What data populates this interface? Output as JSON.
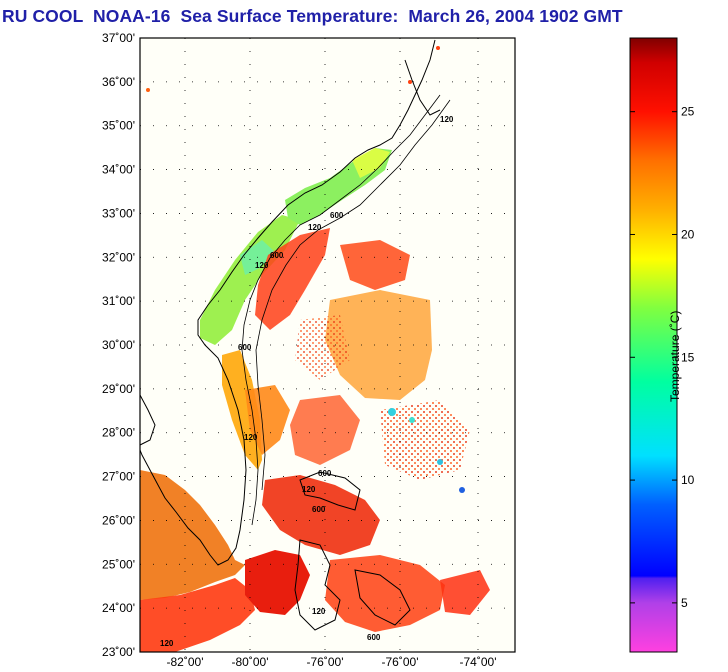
{
  "title": "RU COOL  NOAA-16  Sea Surface Temperature:  March 26, 2004 1902 GMT",
  "map": {
    "lat_labels": [
      "37˚00'",
      "36˚00'",
      "35˚00'",
      "34˚00'",
      "33˚00'",
      "32˚00'",
      "31˚00'",
      "30˚00'",
      "29˚00'",
      "28˚00'",
      "27˚00'",
      "26˚00'",
      "25˚00'",
      "24˚00'",
      "23˚00'"
    ],
    "lon_labels": [
      "-82˚00'",
      "-80˚00'",
      "-76˚00'",
      "-76˚00'",
      "-74˚00'"
    ],
    "isobath_labels": [
      "120",
      "600",
      "120",
      "600",
      "120",
      "600",
      "120",
      "600",
      "120",
      "600",
      "120",
      "600",
      "120"
    ],
    "colors": {
      "land": "#fffff8",
      "frame": "#000000",
      "grid": "#000000"
    }
  },
  "colorbar": {
    "title": "Temperature (˚C)",
    "ticks": [
      "25",
      "20",
      "15",
      "10",
      "5"
    ],
    "range": [
      3,
      28
    ],
    "stops": [
      {
        "t": 3,
        "color": "#ff40e0"
      },
      {
        "t": 5,
        "color": "#b040e8"
      },
      {
        "t": 6,
        "color": "#5020f0"
      },
      {
        "t": 6.1,
        "color": "#0000ff"
      },
      {
        "t": 9,
        "color": "#0060ff"
      },
      {
        "t": 11,
        "color": "#00e0ff"
      },
      {
        "t": 14,
        "color": "#00ffa0"
      },
      {
        "t": 17,
        "color": "#80ff40"
      },
      {
        "t": 19,
        "color": "#ffff00"
      },
      {
        "t": 21,
        "color": "#ffb000"
      },
      {
        "t": 23,
        "color": "#ff7000"
      },
      {
        "t": 25,
        "color": "#ff1000"
      },
      {
        "t": 27,
        "color": "#d00000"
      },
      {
        "t": 28,
        "color": "#800000"
      }
    ]
  }
}
